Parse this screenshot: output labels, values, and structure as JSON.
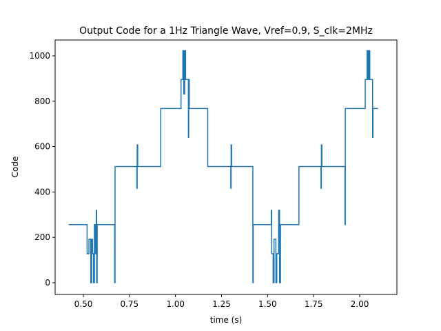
{
  "chart_data": {
    "type": "line",
    "title": "Output Code for a 1Hz Triangle Wave, Vref=0.9, S_clk=2MHz",
    "xlabel": "time (s)",
    "ylabel": "Code",
    "color": "#1f77b4",
    "xlim": [
      0.3466,
      2.202
    ],
    "ylim": [
      -51.7,
      1069.9
    ],
    "xticks": [
      {
        "value": 0.5,
        "label": "0.50"
      },
      {
        "value": 0.75,
        "label": "0.75"
      },
      {
        "value": 1.0,
        "label": "1.00"
      },
      {
        "value": 1.25,
        "label": "1.25"
      },
      {
        "value": 1.5,
        "label": "1.50"
      },
      {
        "value": 1.75,
        "label": "1.75"
      },
      {
        "value": 2.0,
        "label": "2.00"
      }
    ],
    "yticks": [
      0,
      200,
      400,
      600,
      800,
      1000
    ],
    "x": [
      0.42,
      0.52,
      0.52,
      0.53,
      0.53,
      0.54,
      0.54,
      0.545,
      0.545,
      0.55,
      0.55,
      0.555,
      0.555,
      0.56,
      0.56,
      0.565,
      0.565,
      0.57,
      0.57,
      0.572,
      0.572,
      0.575,
      0.575,
      0.67,
      0.67,
      0.672,
      0.672,
      0.79,
      0.79,
      0.792,
      0.792,
      0.795,
      0.795,
      0.92,
      0.92,
      1.03,
      1.03,
      1.04,
      1.04,
      1.045,
      1.045,
      1.05,
      1.05,
      1.055,
      1.055,
      1.07,
      1.07,
      1.072,
      1.072,
      1.075,
      1.075,
      1.175,
      1.175,
      1.3,
      1.3,
      1.302,
      1.302,
      1.305,
      1.305,
      1.42,
      1.42,
      1.422,
      1.422,
      1.52,
      1.52,
      1.522,
      1.522,
      1.53,
      1.53,
      1.535,
      1.535,
      1.545,
      1.545,
      1.55,
      1.55,
      1.56,
      1.56,
      1.565,
      1.565,
      1.57,
      1.57,
      1.67,
      1.67,
      1.79,
      1.79,
      1.792,
      1.792,
      1.795,
      1.795,
      1.92,
      1.92,
      1.922,
      1.922,
      2.03,
      2.03,
      2.04,
      2.04,
      2.045,
      2.045,
      2.05,
      2.05,
      2.055,
      2.055,
      2.07,
      2.07,
      2.072,
      2.072,
      2.1
    ],
    "values": [
      256,
      256,
      128,
      128,
      192,
      192,
      0,
      0,
      192,
      192,
      128,
      128,
      0,
      0,
      256,
      256,
      128,
      128,
      320,
      320,
      0,
      0,
      256,
      256,
      0,
      0,
      512,
      512,
      416,
      416,
      608,
      608,
      512,
      512,
      768,
      768,
      896,
      896,
      1023,
      1023,
      832,
      832,
      1023,
      1023,
      896,
      896,
      640,
      640,
      896,
      896,
      768,
      768,
      512,
      512,
      416,
      416,
      608,
      608,
      512,
      512,
      0,
      0,
      256,
      256,
      320,
      320,
      128,
      128,
      0,
      0,
      192,
      192,
      0,
      0,
      128,
      128,
      320,
      320,
      0,
      0,
      256,
      256,
      512,
      512,
      416,
      416,
      608,
      608,
      512,
      512,
      256,
      256,
      768,
      768,
      896,
      896,
      1023,
      1023,
      896,
      896,
      1023,
      1023,
      896,
      896,
      640,
      640,
      768,
      768
    ]
  }
}
